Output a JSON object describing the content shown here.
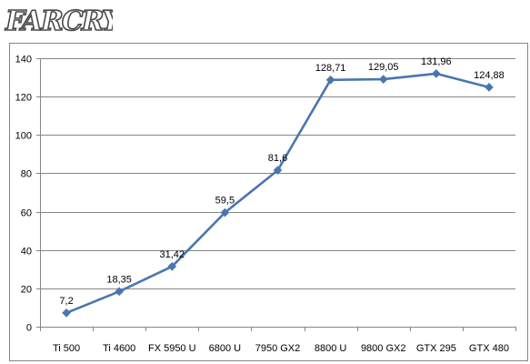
{
  "logo": {
    "text": "FARCRY"
  },
  "colors": {
    "series": "#4A76B0",
    "grid": "#868686",
    "frame": "#868686",
    "logo_fill": "#ffffff",
    "logo_stroke": "#4a4a4a"
  },
  "chart_data": {
    "type": "line",
    "title": "",
    "xlabel": "",
    "ylabel": "",
    "categories": [
      "Ti 500",
      "Ti 4600",
      "FX 5950 U",
      "6800 U",
      "7950 GX2",
      "8800 U",
      "9800 GX2",
      "GTX 295",
      "GTX 480"
    ],
    "series": [
      {
        "values": [
          7.2,
          18.35,
          31.42,
          59.5,
          81.6,
          128.71,
          129.05,
          131.96,
          124.88
        ],
        "labels": [
          "7,2",
          "18,35",
          "31,42",
          "59,5",
          "81,6",
          "128,71",
          "129,05",
          "131,96",
          "124,88"
        ],
        "marker": "diamond"
      }
    ],
    "ylim": [
      0,
      140
    ],
    "yticks": [
      0,
      20,
      40,
      60,
      80,
      100,
      120,
      140
    ],
    "grid": true,
    "legend": "none"
  }
}
